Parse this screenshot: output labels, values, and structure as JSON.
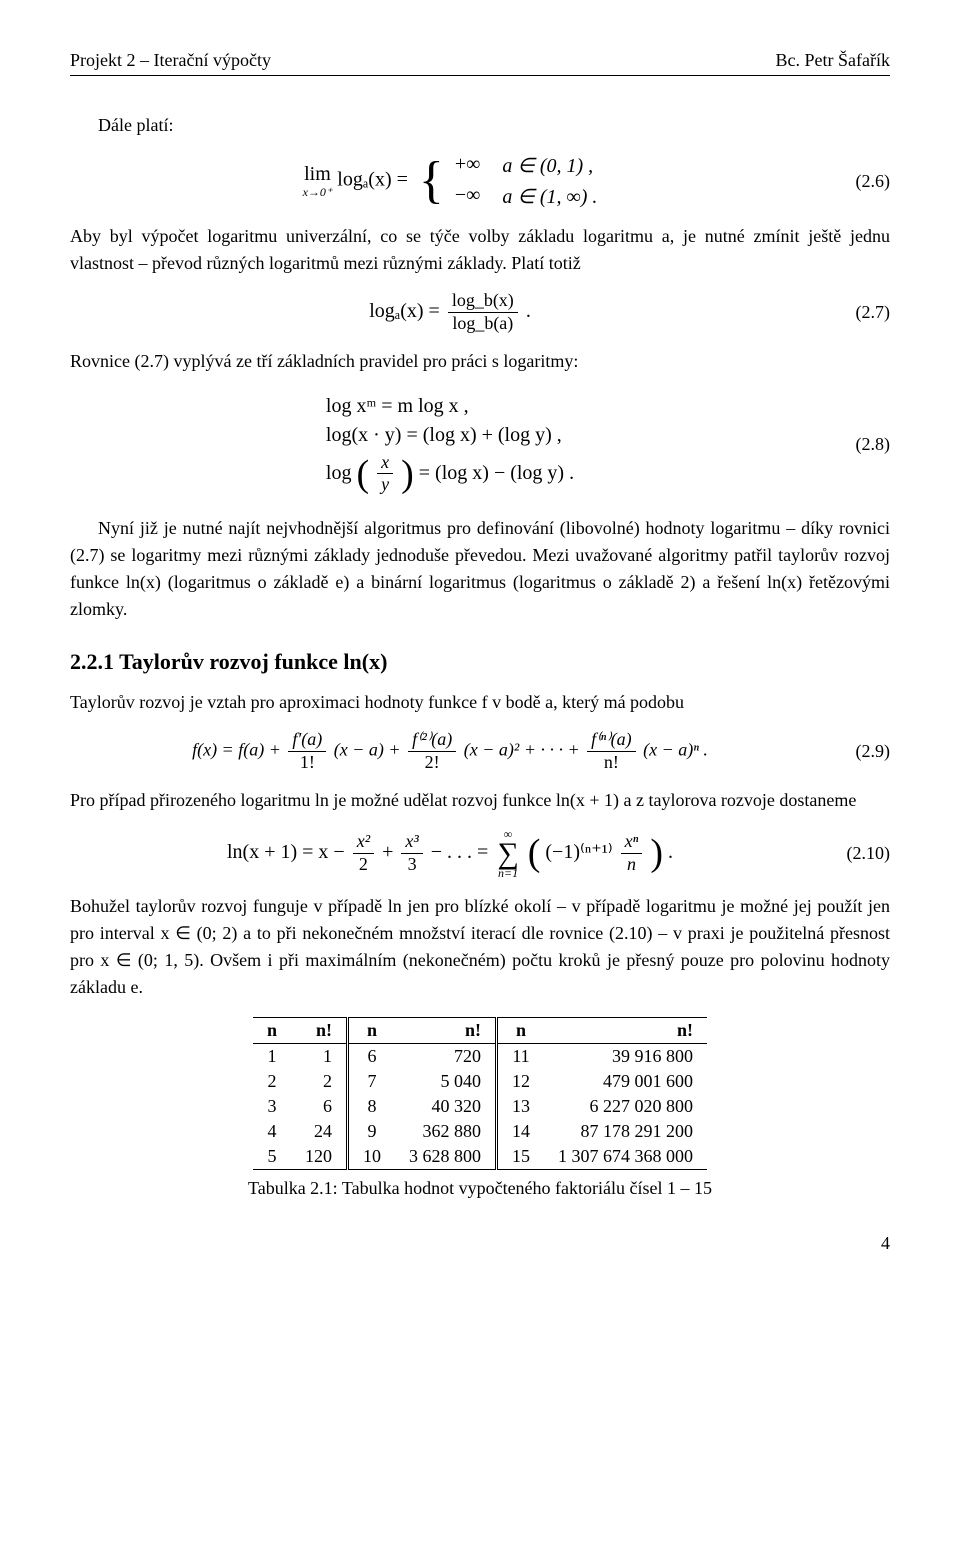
{
  "header": {
    "left": "Projekt 2 – Iterační výpočty",
    "right": "Bc. Petr Šafařík"
  },
  "intro_label": "Dále platí:",
  "eq26": {
    "lhs_prefix": "lim",
    "lhs_sub": "x→0⁺",
    "lhs_body": "logₐ(x) =",
    "case1_val": "+∞",
    "case1_cond": "a ∈ (0, 1) ,",
    "case2_val": "−∞",
    "case2_cond": "a ∈ (1, ∞) .",
    "num": "(2.6)"
  },
  "para1": "Aby byl výpočet logaritmu univerzální, co se týče volby základu logaritmu a, je nutné zmínit ještě jednu vlastnost – převod různých logaritmů mezi různými základy. Platí totiž",
  "eq27": {
    "lhs": "logₐ(x) =",
    "num_top": "log_b(x)",
    "num_bot": "log_b(a)",
    "tail": ".",
    "num": "(2.7)"
  },
  "para2": "Rovnice (2.7) vyplývá ze tří základních pravidel pro práci s logaritmy:",
  "eq28": {
    "line1": "log xᵐ = m log x ,",
    "line2": "log(x · y) = (log x) + (log y) ,",
    "line3_pre": "log",
    "line3_frac_top": "x",
    "line3_frac_bot": "y",
    "line3_post": "= (log x) − (log y) .",
    "num": "(2.8)"
  },
  "para3": "Nyní již je nutné najít nejvhodnější algoritmus pro definování (libovolné) hodnoty logaritmu – díky rovnici (2.7) se logaritmy mezi různými základy jednoduše převedou. Mezi uvažované algoritmy patřil taylorův rozvoj funkce ln(x) (logaritmus o základě e) a binární logaritmus (logaritmus o základě 2) a řešení ln(x) řetězovými zlomky.",
  "sub_heading": "2.2.1   Taylorův rozvoj funkce ln(x)",
  "para4": "Taylorův rozvoj je vztah pro aproximaci hodnoty funkce f v bodě a, který má podobu",
  "eq29": {
    "text": "f(x) = f(a) +",
    "t1_top": "f′(a)",
    "t1_bot": "1!",
    "t1_post": "(x − a) +",
    "t2_top": "f⁽²⁾(a)",
    "t2_bot": "2!",
    "t2_post": "(x − a)² + · · · +",
    "tn_top": "f⁽ⁿ⁾(a)",
    "tn_bot": "n!",
    "tn_post": "(x − a)ⁿ .",
    "num": "(2.9)"
  },
  "para5": "Pro případ přirozeného logaritmu ln je možné udělat rozvoj funkce ln(x + 1) a z taylorova rozvoje dostaneme",
  "eq210": {
    "lhs": "ln(x + 1) = x −",
    "t2_top": "x²",
    "t2_bot": "2",
    "plus": "+",
    "t3_top": "x³",
    "t3_bot": "3",
    "dots": "− . . . =",
    "sum_top": "∞",
    "sum_bot": "n=1",
    "inner_pre": "(−1)⁽ⁿ⁺¹⁾",
    "inner_top": "xⁿ",
    "inner_bot": "n",
    "tail": ".",
    "num": "(2.10)"
  },
  "para6": "Bohužel taylorův rozvoj funguje v případě ln jen pro blízké okolí – v případě logaritmu je možné jej použít jen pro interval x ∈ (0; 2) a to při nekonečném množství iterací dle rovnice (2.10) – v praxi je použitelná přesnost pro x ∈ (0; 1, 5). Ovšem i při maximálním (nekonečném) počtu kroků je přesný pouze pro polovinu hodnoty základu e.",
  "table": {
    "headers": [
      "n",
      "n!",
      "n",
      "n!",
      "n",
      "n!"
    ],
    "rows": [
      [
        "1",
        "1",
        "6",
        "720",
        "11",
        "39 916 800"
      ],
      [
        "2",
        "2",
        "7",
        "5 040",
        "12",
        "479 001 600"
      ],
      [
        "3",
        "6",
        "8",
        "40 320",
        "13",
        "6 227 020 800"
      ],
      [
        "4",
        "24",
        "9",
        "362 880",
        "14",
        "87 178 291 200"
      ],
      [
        "5",
        "120",
        "10",
        "3 628 800",
        "15",
        "1 307 674 368 000"
      ]
    ],
    "caption": "Tabulka 2.1: Tabulka hodnot vypočteného faktoriálu čísel 1 – 15"
  },
  "page_number": "4"
}
